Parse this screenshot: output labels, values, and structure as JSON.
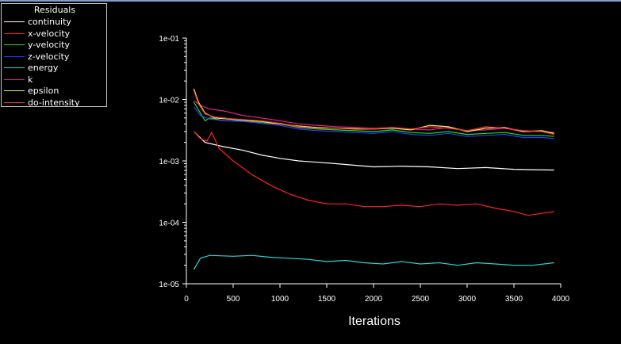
{
  "chart_data": {
    "type": "line",
    "title": "",
    "xlabel": "Iterations",
    "ylabel": "",
    "y_scale": "log",
    "xlim": [
      0,
      4000
    ],
    "ylim": [
      1e-05,
      0.1
    ],
    "x_ticks": [
      "0",
      "500",
      "1000",
      "1500",
      "2000",
      "2500",
      "3000",
      "3500",
      "4000"
    ],
    "y_ticks": [
      "1e-01",
      "1e-02",
      "1e-03",
      "1e-04",
      "1e-05"
    ],
    "grid": false,
    "legend_title": "Residuals",
    "legend_position": "top-left",
    "series": [
      {
        "name": "continuity",
        "color": "#ffffff",
        "points": [
          [
            80,
            0.003
          ],
          [
            200,
            0.002
          ],
          [
            400,
            0.0017
          ],
          [
            600,
            0.0015
          ],
          [
            800,
            0.00125
          ],
          [
            1000,
            0.0011
          ],
          [
            1200,
            0.001
          ],
          [
            1400,
            0.00095
          ],
          [
            1600,
            0.0009
          ],
          [
            1800,
            0.00085
          ],
          [
            2000,
            0.0008
          ],
          [
            2300,
            0.00082
          ],
          [
            2600,
            0.0008
          ],
          [
            2900,
            0.00075
          ],
          [
            3200,
            0.00078
          ],
          [
            3500,
            0.00073
          ],
          [
            3700,
            0.00072
          ],
          [
            3930,
            0.00071
          ]
        ]
      },
      {
        "name": "x-velocity",
        "color": "#ff2020",
        "points": [
          [
            80,
            0.003
          ],
          [
            150,
            0.0023
          ],
          [
            220,
            0.0021
          ],
          [
            270,
            0.0029
          ],
          [
            350,
            0.0016
          ],
          [
            500,
            0.001
          ],
          [
            700,
            0.0006
          ],
          [
            900,
            0.0004
          ],
          [
            1100,
            0.00029
          ],
          [
            1300,
            0.00023
          ],
          [
            1500,
            0.0002
          ],
          [
            1700,
            0.0002
          ],
          [
            1900,
            0.00018
          ],
          [
            2100,
            0.00018
          ],
          [
            2300,
            0.00019
          ],
          [
            2500,
            0.00018
          ],
          [
            2700,
            0.0002
          ],
          [
            2900,
            0.00019
          ],
          [
            3100,
            0.0002
          ],
          [
            3300,
            0.00017
          ],
          [
            3500,
            0.00015
          ],
          [
            3650,
            0.00013
          ],
          [
            3800,
            0.00014
          ],
          [
            3930,
            0.00015
          ]
        ]
      },
      {
        "name": "y-velocity",
        "color": "#1ee01e",
        "points": [
          [
            80,
            0.009
          ],
          [
            150,
            0.006
          ],
          [
            200,
            0.0045
          ],
          [
            250,
            0.005
          ],
          [
            400,
            0.0045
          ],
          [
            600,
            0.0045
          ],
          [
            800,
            0.0042
          ],
          [
            1000,
            0.004
          ],
          [
            1200,
            0.0035
          ],
          [
            1400,
            0.0033
          ],
          [
            1600,
            0.0032
          ],
          [
            1800,
            0.0031
          ],
          [
            2000,
            0.003
          ],
          [
            2200,
            0.0032
          ],
          [
            2400,
            0.0029
          ],
          [
            2600,
            0.0028
          ],
          [
            2800,
            0.003
          ],
          [
            3000,
            0.0027
          ],
          [
            3200,
            0.0028
          ],
          [
            3400,
            0.0029
          ],
          [
            3600,
            0.0026
          ],
          [
            3800,
            0.0026
          ],
          [
            3930,
            0.0025
          ]
        ]
      },
      {
        "name": "z-velocity",
        "color": "#2a3cff",
        "points": [
          [
            80,
            0.0075
          ],
          [
            150,
            0.0055
          ],
          [
            250,
            0.0048
          ],
          [
            400,
            0.0045
          ],
          [
            600,
            0.0044
          ],
          [
            800,
            0.0041
          ],
          [
            1000,
            0.0038
          ],
          [
            1200,
            0.0033
          ],
          [
            1400,
            0.0031
          ],
          [
            1600,
            0.003
          ],
          [
            1800,
            0.0029
          ],
          [
            2000,
            0.0028
          ],
          [
            2200,
            0.003
          ],
          [
            2400,
            0.0027
          ],
          [
            2600,
            0.0026
          ],
          [
            2800,
            0.0028
          ],
          [
            3000,
            0.0025
          ],
          [
            3200,
            0.0026
          ],
          [
            3400,
            0.0027
          ],
          [
            3600,
            0.0024
          ],
          [
            3800,
            0.0024
          ],
          [
            3930,
            0.0023
          ]
        ]
      },
      {
        "name": "energy",
        "color": "#2ad4d4",
        "points": [
          [
            80,
            1.7e-05
          ],
          [
            150,
            2.6e-05
          ],
          [
            250,
            2.9e-05
          ],
          [
            500,
            2.8e-05
          ],
          [
            700,
            2.9e-05
          ],
          [
            900,
            2.7e-05
          ],
          [
            1100,
            2.6e-05
          ],
          [
            1300,
            2.5e-05
          ],
          [
            1500,
            2.3e-05
          ],
          [
            1700,
            2.4e-05
          ],
          [
            1900,
            2.2e-05
          ],
          [
            2100,
            2.1e-05
          ],
          [
            2300,
            2.3e-05
          ],
          [
            2500,
            2.1e-05
          ],
          [
            2700,
            2.2e-05
          ],
          [
            2900,
            2e-05
          ],
          [
            3100,
            2.2e-05
          ],
          [
            3300,
            2.1e-05
          ],
          [
            3500,
            2e-05
          ],
          [
            3700,
            2e-05
          ],
          [
            3930,
            2.2e-05
          ]
        ]
      },
      {
        "name": "k",
        "color": "#e0208a",
        "points": [
          [
            80,
            0.0095
          ],
          [
            150,
            0.008
          ],
          [
            250,
            0.007
          ],
          [
            400,
            0.0065
          ],
          [
            600,
            0.0055
          ],
          [
            800,
            0.005
          ],
          [
            1000,
            0.0045
          ],
          [
            1200,
            0.004
          ],
          [
            1400,
            0.0038
          ],
          [
            1600,
            0.0036
          ],
          [
            1800,
            0.0035
          ],
          [
            2000,
            0.0034
          ],
          [
            2200,
            0.0035
          ],
          [
            2400,
            0.0033
          ],
          [
            2600,
            0.0032
          ],
          [
            2800,
            0.0035
          ],
          [
            3000,
            0.0031
          ],
          [
            3200,
            0.0032
          ],
          [
            3400,
            0.0034
          ],
          [
            3600,
            0.003
          ],
          [
            3800,
            0.003
          ],
          [
            3930,
            0.0029
          ]
        ]
      },
      {
        "name": "epsilon",
        "color": "#f0f060",
        "points": [
          [
            80,
            0.015
          ],
          [
            130,
            0.009
          ],
          [
            200,
            0.006
          ],
          [
            300,
            0.005
          ],
          [
            450,
            0.0048
          ],
          [
            600,
            0.0046
          ],
          [
            800,
            0.0044
          ],
          [
            1000,
            0.004
          ],
          [
            1200,
            0.0037
          ],
          [
            1400,
            0.0035
          ],
          [
            1600,
            0.0034
          ],
          [
            1800,
            0.0033
          ],
          [
            2000,
            0.0033
          ],
          [
            2200,
            0.0034
          ],
          [
            2400,
            0.0032
          ],
          [
            2600,
            0.0038
          ],
          [
            2800,
            0.0036
          ],
          [
            3000,
            0.003
          ],
          [
            3200,
            0.0034
          ],
          [
            3400,
            0.0035
          ],
          [
            3600,
            0.003
          ],
          [
            3800,
            0.0031
          ],
          [
            3930,
            0.0028
          ]
        ]
      },
      {
        "name": "do-intensity",
        "color": "#ff3030",
        "points": [
          [
            80,
            0.014
          ],
          [
            130,
            0.0085
          ],
          [
            200,
            0.0058
          ],
          [
            300,
            0.0052
          ],
          [
            450,
            0.0049
          ],
          [
            600,
            0.0047
          ],
          [
            800,
            0.0045
          ],
          [
            1000,
            0.0041
          ],
          [
            1200,
            0.0036
          ],
          [
            1400,
            0.0034
          ],
          [
            1600,
            0.0034
          ],
          [
            1800,
            0.0034
          ],
          [
            2000,
            0.0033
          ],
          [
            2200,
            0.0035
          ],
          [
            2400,
            0.0033
          ],
          [
            2600,
            0.0036
          ],
          [
            2800,
            0.0034
          ],
          [
            3000,
            0.0031
          ],
          [
            3200,
            0.0036
          ],
          [
            3400,
            0.0034
          ],
          [
            3600,
            0.0031
          ],
          [
            3800,
            0.003
          ],
          [
            3930,
            0.0027
          ]
        ]
      }
    ]
  }
}
